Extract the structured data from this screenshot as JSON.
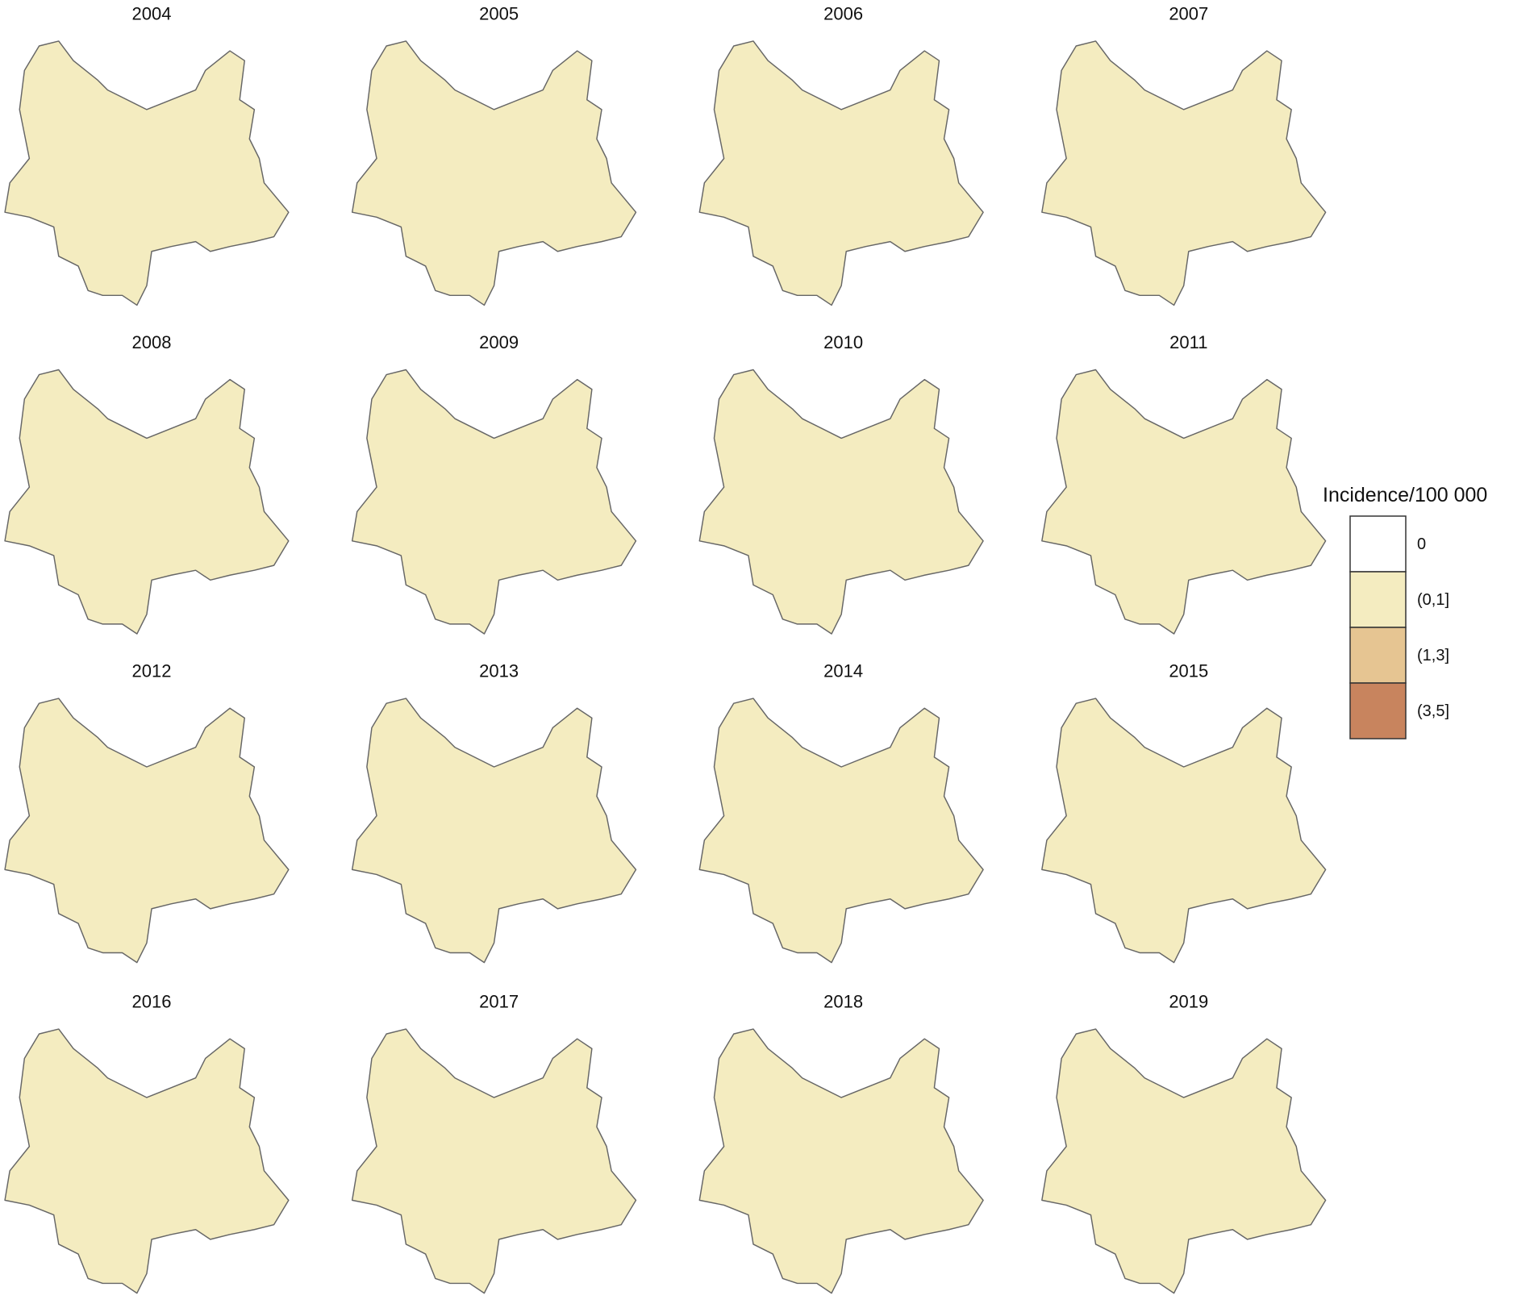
{
  "maps": [
    {
      "year": "2004"
    },
    {
      "year": "2005"
    },
    {
      "year": "2006"
    },
    {
      "year": "2007"
    },
    {
      "year": "2008"
    },
    {
      "year": "2009"
    },
    {
      "year": "2010"
    },
    {
      "year": "2011"
    },
    {
      "year": "2012"
    },
    {
      "year": "2013"
    },
    {
      "year": "2014"
    },
    {
      "year": "2015"
    },
    {
      "year": "2016"
    },
    {
      "year": "2017"
    },
    {
      "year": "2018"
    },
    {
      "year": "2019"
    }
  ],
  "legend": {
    "title": "Incidence/100 000",
    "items": [
      {
        "label": "0",
        "color": "#ffffff"
      },
      {
        "label": "(0,1]",
        "color": "#f4ecc0"
      },
      {
        "label": "(1,3]",
        "color": "#e6c592"
      },
      {
        "label": "(3,5]",
        "color": "#c8845e"
      }
    ]
  }
}
